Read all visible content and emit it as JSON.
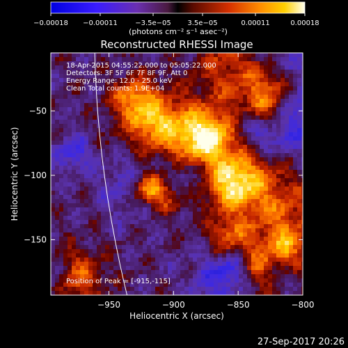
{
  "chart_data": {
    "type": "heatmap",
    "title": "Reconstructed RHESSI Image",
    "xlabel": "Heliocentric X (arcsec)",
    "ylabel": "Heliocentric Y (arcsec)",
    "xlim": [
      -995,
      -800
    ],
    "ylim": [
      -193,
      -5
    ],
    "x_ticks": [
      -950,
      -900,
      -850,
      -800
    ],
    "y_ticks": [
      -50,
      -100,
      -150
    ],
    "x_tick_labels": [
      "−950",
      "−900",
      "−850",
      "−800"
    ],
    "y_tick_labels": [
      "−50",
      "−100",
      "−150"
    ],
    "colorbar": {
      "range": [
        -0.00018,
        0.00018
      ],
      "tick_values": [
        -0.00018,
        -0.00011,
        -3.5e-05,
        3.5e-05,
        0.00011,
        0.00018
      ],
      "tick_labels": [
        "−0.00018",
        "−0.00011",
        "−3.5e−05",
        "3.5e−05",
        "0.00011",
        "0.00018"
      ],
      "units": "(photons cm⁻² s⁻¹ asec⁻²)"
    },
    "annotations": [
      "18-Apr-2015 04:55:22.000 to 05:05:22.000",
      "Detectors: 3F 5F 6F 7F 8F 9F, Att 0",
      "Energy Range: 12.0 - 25.0 keV",
      "Clean     Total counts: 1.9E+04"
    ],
    "peak_label": "Position of Peak = [-915,-115]",
    "peak_position": [
      -915,
      -115
    ],
    "limb_curve_x_at_top": -961,
    "limb_curve_x_at_bottom": -936
  },
  "footer": {
    "date": "27-Sep-2017 20:26"
  }
}
